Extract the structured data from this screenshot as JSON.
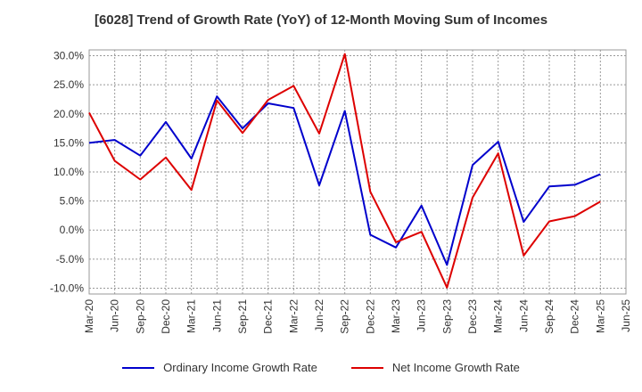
{
  "chart_data": {
    "type": "line",
    "title": "[6028]  Trend of Growth Rate (YoY) of 12-Month Moving Sum of Incomes",
    "xlabel": "",
    "ylabel": "",
    "grid": true,
    "legend_position": "bottom",
    "x_ticks": [
      "Mar-20",
      "Jun-20",
      "Sep-20",
      "Dec-20",
      "Mar-21",
      "Jun-21",
      "Sep-21",
      "Dec-21",
      "Mar-22",
      "Jun-22",
      "Sep-22",
      "Dec-22",
      "Mar-23",
      "Jun-23",
      "Sep-23",
      "Dec-23",
      "Mar-24",
      "Jun-24",
      "Sep-24",
      "Dec-24",
      "Mar-25",
      "Jun-25"
    ],
    "y_ticks": [
      "30.0%",
      "25.0%",
      "20.0%",
      "15.0%",
      "10.0%",
      "5.0%",
      "0.0%",
      "-5.0%",
      "-10.0%"
    ],
    "y_tick_values": [
      30,
      25,
      20,
      15,
      10,
      5,
      0,
      -5,
      -10
    ],
    "ylim": [
      -11,
      31
    ],
    "series": [
      {
        "name": "Ordinary Income Growth Rate",
        "color": "#0000cc",
        "values": [
          15.0,
          15.5,
          12.8,
          18.6,
          12.3,
          23.0,
          17.5,
          21.8,
          21.0,
          7.7,
          20.5,
          -0.8,
          -3.0,
          4.2,
          -6.0,
          11.2,
          15.2,
          1.4,
          7.5,
          7.8,
          9.6
        ]
      },
      {
        "name": "Net Income Growth Rate",
        "color": "#dd0000",
        "values": [
          20.2,
          11.9,
          8.7,
          12.5,
          6.9,
          22.3,
          16.7,
          22.4,
          24.8,
          16.6,
          30.3,
          6.6,
          -2.1,
          -0.3,
          -9.9,
          5.6,
          13.2,
          -4.4,
          1.5,
          2.4,
          4.9
        ]
      }
    ]
  }
}
